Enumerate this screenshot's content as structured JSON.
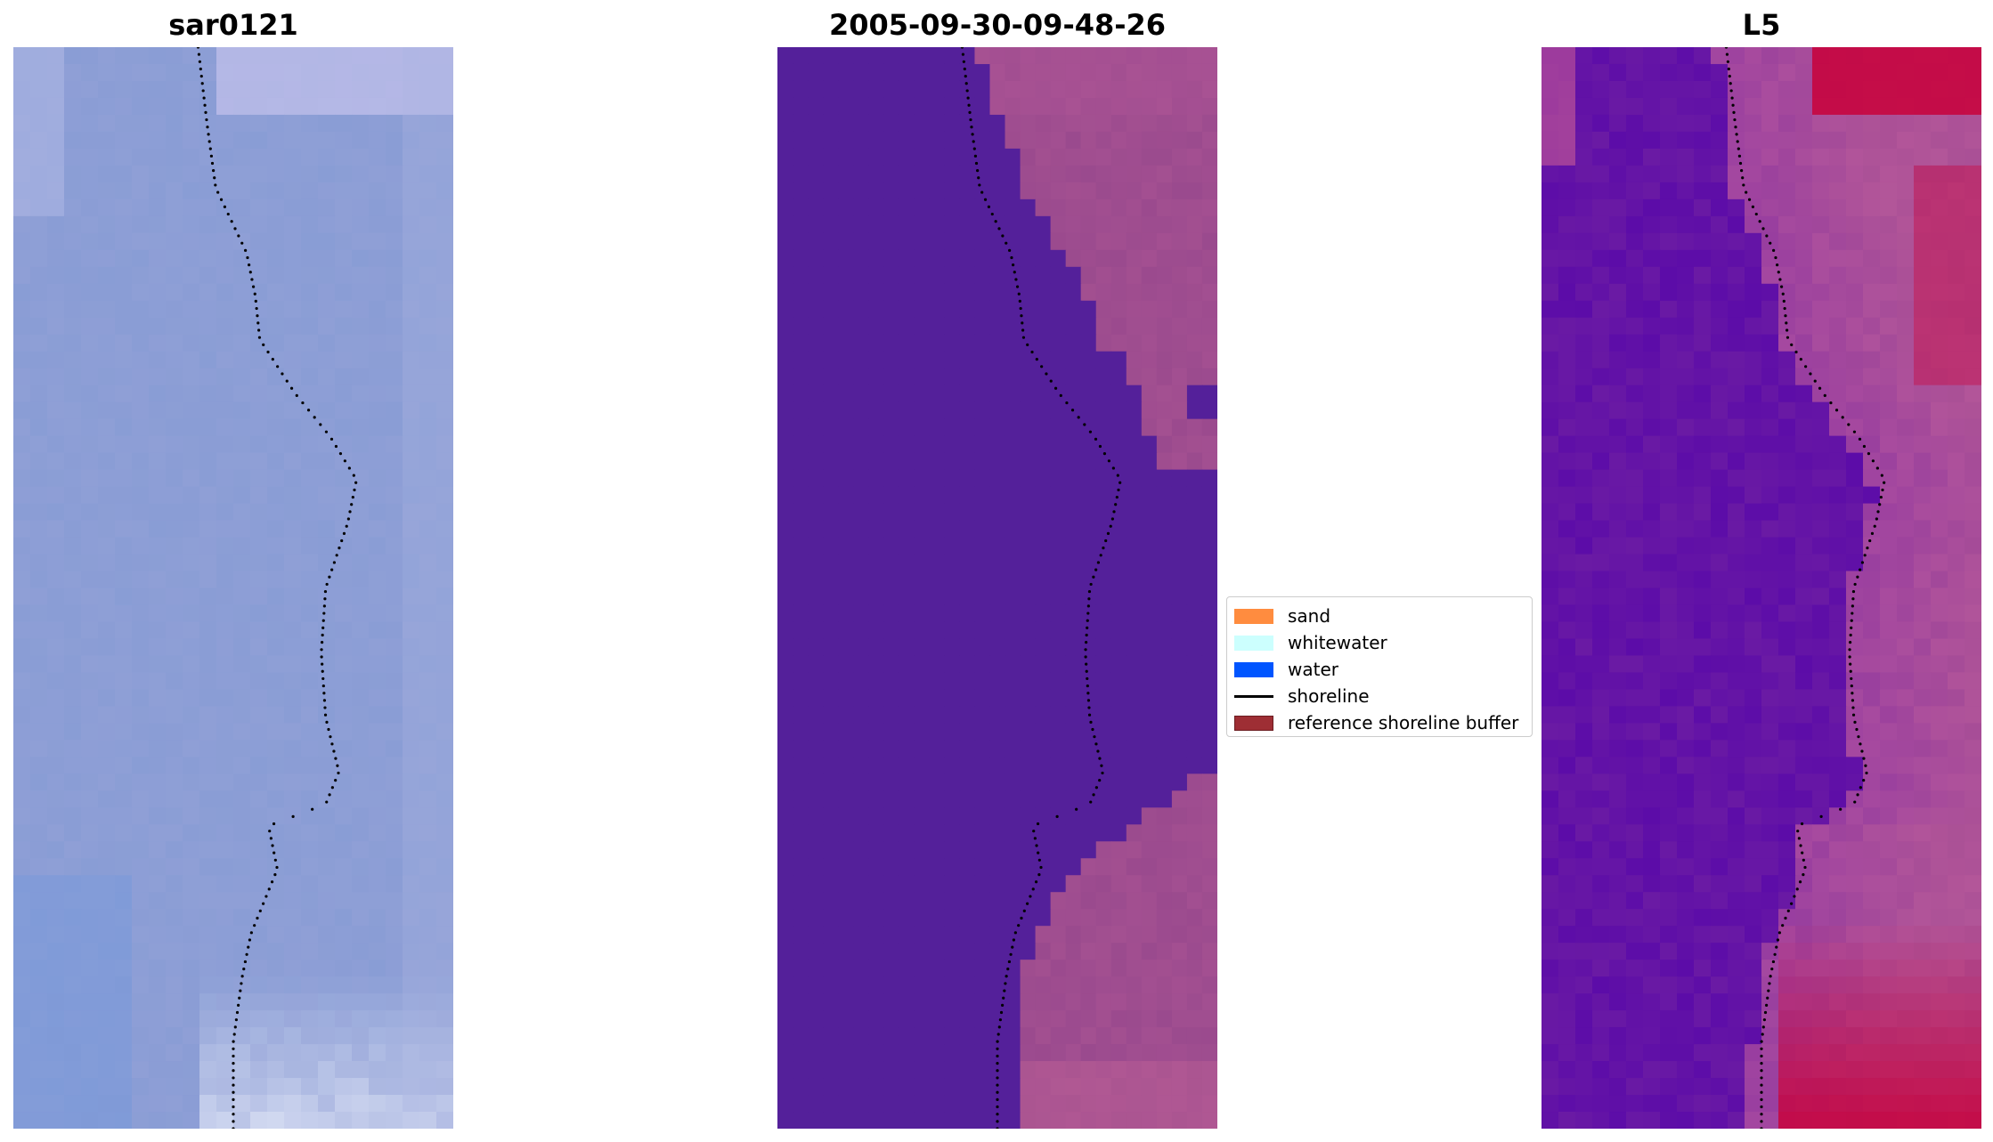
{
  "panels": [
    {
      "title": "sar0121",
      "kind": "rgb"
    },
    {
      "title": "2005-09-30-09-48-26",
      "kind": "classified"
    },
    {
      "title": "L5",
      "kind": "index"
    }
  ],
  "legend": {
    "items": [
      {
        "label": "sand",
        "color": "#ff8c3f",
        "type": "patch"
      },
      {
        "label": "whitewater",
        "color": "#ccfffe",
        "type": "patch"
      },
      {
        "label": "water",
        "color": "#0055ff",
        "type": "patch"
      },
      {
        "label": "shoreline",
        "color": "#000000",
        "type": "line"
      },
      {
        "label": "reference shoreline buffer",
        "color": "#9e2e34",
        "edge": "#6b1c20",
        "type": "patch"
      }
    ]
  },
  "colors": {
    "rgb_base": "#8f9fd6",
    "classified_water": "#54209a",
    "classified_land": "#9a4a8e",
    "index_low": "#5c0ca8",
    "index_high": "#c8003a",
    "shoreline_dots": "#000000"
  },
  "grid": {
    "cols": 26,
    "rows": 64
  }
}
